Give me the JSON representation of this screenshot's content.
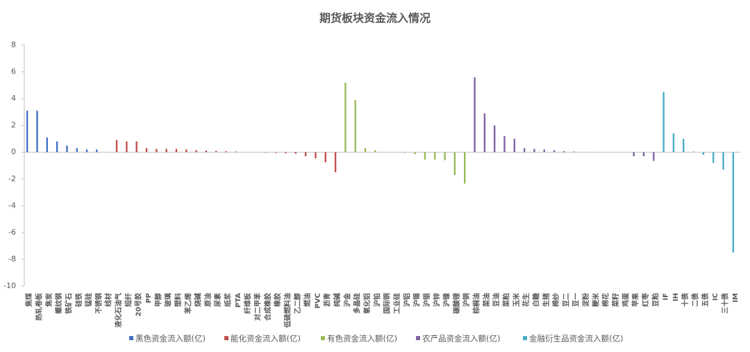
{
  "chart_data": {
    "type": "bar",
    "title": "期货板块资金流入情况",
    "categories": [
      "焦煤",
      "热轧卷板",
      "焦炭",
      "螺纹钢",
      "铁矿石",
      "硅铁",
      "锰硅",
      "不锈钢",
      "线材",
      "液化石油气",
      "短纤",
      "20号胶",
      "PP",
      "甲醇",
      "玻璃",
      "塑料",
      "苯乙烯",
      "烧碱",
      "原油",
      "尿素",
      "纸浆",
      "PTA",
      "纤维板",
      "对二甲苯",
      "合成橡胶",
      "橡胶",
      "低硫燃料油",
      "乙二醇",
      "燃油",
      "PVC",
      "沥青",
      "纯碱",
      "沪金",
      "多晶硅",
      "氧化铝",
      "沪铅",
      "国际铜",
      "工业硅",
      "沪铝",
      "沪锡",
      "沪银",
      "沪锌",
      "沪镍",
      "碳酸锂",
      "沪铜",
      "棕榈油",
      "菜油",
      "豆油",
      "菜粕",
      "玉米",
      "花生",
      "白糖",
      "生猪",
      "棉纱",
      "豆二",
      "豆一",
      "淀粉",
      "粳米",
      "棉花",
      "菜籽",
      "鸡蛋",
      "苹果",
      "红枣",
      "豆粕",
      "IF",
      "IH",
      "十债",
      "二债",
      "五债",
      "IC",
      "三十债",
      "IM"
    ],
    "series": [
      {
        "name": "黑色资金流入额(亿)",
        "color": "#4472c4",
        "values": [
          3.1,
          3.1,
          1.1,
          0.8,
          0.5,
          0.3,
          0.2,
          0.2,
          0,
          null,
          null,
          null,
          null,
          null,
          null,
          null,
          null,
          null,
          null,
          null,
          null,
          null,
          null,
          null,
          null,
          null,
          null,
          null,
          null,
          null,
          null,
          null,
          null,
          null,
          null,
          null,
          null,
          null,
          null,
          null,
          null,
          null,
          null,
          null,
          null,
          null,
          null,
          null,
          null,
          null,
          null,
          null,
          null,
          null,
          null,
          null,
          null,
          null,
          null,
          null,
          null,
          null,
          null,
          null,
          null,
          null,
          null,
          null,
          null,
          null,
          null,
          null
        ]
      },
      {
        "name": "能化资金流入额(亿)",
        "color": "#c0504d",
        "values": [
          null,
          null,
          null,
          null,
          null,
          null,
          null,
          null,
          null,
          0.9,
          0.8,
          0.8,
          0.3,
          0.25,
          0.25,
          0.25,
          0.2,
          0.15,
          0.12,
          0.1,
          0.08,
          0.05,
          0,
          0,
          -0.03,
          -0.05,
          -0.08,
          -0.12,
          -0.3,
          -0.45,
          -0.75,
          -1.5,
          null,
          null,
          null,
          null,
          null,
          null,
          null,
          null,
          null,
          null,
          null,
          null,
          null,
          null,
          null,
          null,
          null,
          null,
          null,
          null,
          null,
          null,
          null,
          null,
          null,
          null,
          null,
          null,
          null,
          null,
          null,
          null,
          null,
          null,
          null,
          null,
          null,
          null,
          null,
          null
        ]
      },
      {
        "name": "有色资金流入额(亿)",
        "color": "#9bbb59",
        "values": [
          null,
          null,
          null,
          null,
          null,
          null,
          null,
          null,
          null,
          null,
          null,
          null,
          null,
          null,
          null,
          null,
          null,
          null,
          null,
          null,
          null,
          null,
          null,
          null,
          null,
          null,
          null,
          null,
          null,
          null,
          null,
          null,
          5.2,
          3.9,
          0.3,
          0.15,
          0.02,
          0,
          -0.05,
          -0.15,
          -0.55,
          -0.55,
          -0.6,
          -1.7,
          -2.35,
          null,
          null,
          null,
          null,
          null,
          null,
          null,
          null,
          null,
          null,
          null,
          null,
          null,
          null,
          null,
          null,
          null,
          null,
          null,
          null,
          null,
          null,
          null,
          null,
          null,
          null,
          null
        ]
      },
      {
        "name": "农产品资金流入额(亿)",
        "color": "#8064a2",
        "values": [
          null,
          null,
          null,
          null,
          null,
          null,
          null,
          null,
          null,
          null,
          null,
          null,
          null,
          null,
          null,
          null,
          null,
          null,
          null,
          null,
          null,
          null,
          null,
          null,
          null,
          null,
          null,
          null,
          null,
          null,
          null,
          null,
          null,
          null,
          null,
          null,
          null,
          null,
          null,
          null,
          null,
          null,
          null,
          null,
          null,
          5.6,
          2.9,
          2.0,
          1.2,
          1.0,
          0.3,
          0.25,
          0.2,
          0.15,
          0.08,
          0.05,
          0.03,
          0,
          0,
          0,
          0,
          -0.3,
          -0.3,
          -0.65,
          null,
          null,
          null,
          null,
          null,
          null,
          null,
          null
        ]
      },
      {
        "name": "金融衍生品资金流入额(亿)",
        "color": "#4bacc6",
        "values": [
          null,
          null,
          null,
          null,
          null,
          null,
          null,
          null,
          null,
          null,
          null,
          null,
          null,
          null,
          null,
          null,
          null,
          null,
          null,
          null,
          null,
          null,
          null,
          null,
          null,
          null,
          null,
          null,
          null,
          null,
          null,
          null,
          null,
          null,
          null,
          null,
          null,
          null,
          null,
          null,
          null,
          null,
          null,
          null,
          null,
          null,
          null,
          null,
          null,
          null,
          null,
          null,
          null,
          null,
          null,
          null,
          null,
          null,
          null,
          null,
          null,
          null,
          null,
          null,
          4.5,
          1.4,
          1.0,
          0.05,
          -0.2,
          -0.8,
          -1.3,
          -7.5
        ]
      }
    ],
    "ylim": [
      -10,
      8
    ],
    "yticks": [
      -10,
      -8,
      -6,
      -4,
      -2,
      0,
      2,
      4,
      6,
      8
    ],
    "grid": false,
    "legend": "bottom"
  }
}
